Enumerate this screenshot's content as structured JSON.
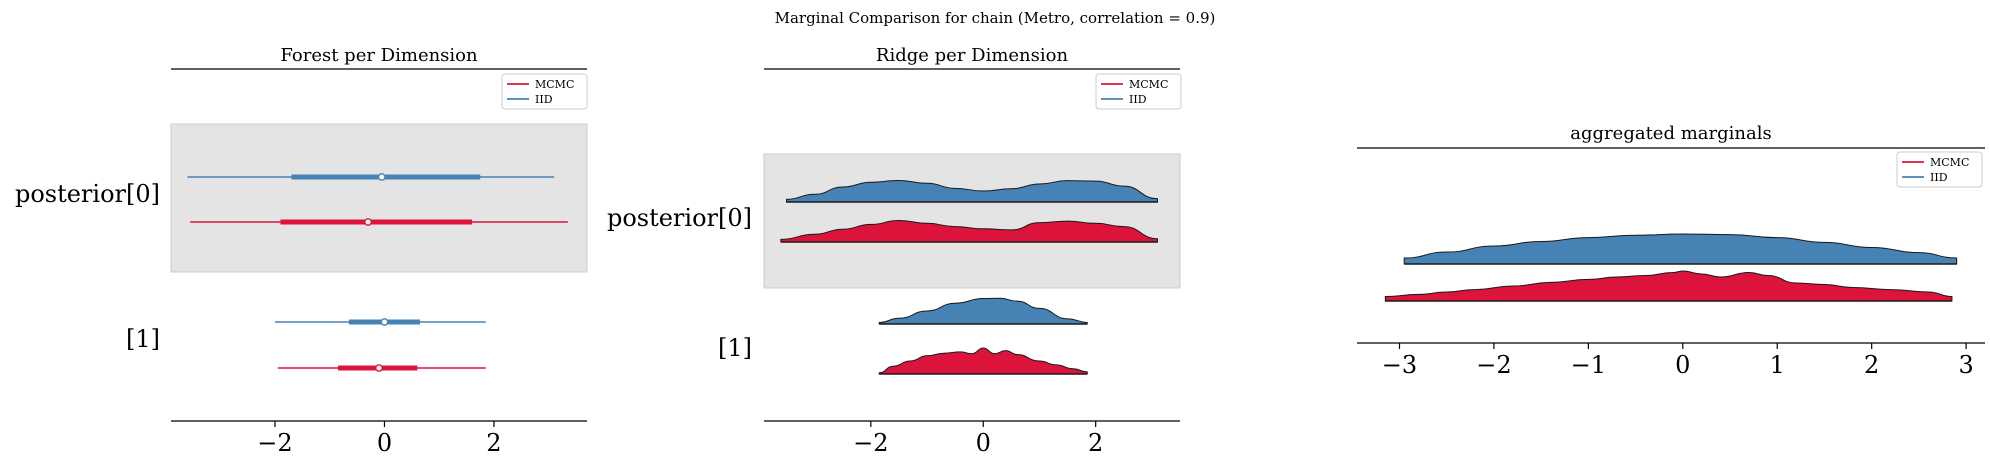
{
  "suptitle": "Marginal Comparison for chain (Metro, correlation = 0.9)",
  "colors": {
    "mcmc": "#dc143c",
    "iid": "#4682b4",
    "shade": "#e4e4e4"
  },
  "legend": {
    "mcmc": "MCMC",
    "iid": "IID"
  },
  "chart_data": [
    {
      "type": "forest",
      "title": "Forest per Dimension",
      "xlim": [
        -3.9,
        3.7
      ],
      "xticks": [
        -2,
        0,
        2
      ],
      "xtick_labels": [
        "−2",
        "0",
        "2"
      ],
      "legend_position": "top-right",
      "rows": [
        {
          "label": "posterior[0]",
          "shaded": true,
          "series": [
            {
              "name": "IID",
              "min": -3.6,
              "q25": -1.7,
              "median": -0.05,
              "q75": 1.75,
              "max": 3.1
            },
            {
              "name": "MCMC",
              "min": -3.55,
              "q25": -1.9,
              "median": -0.3,
              "q75": 1.6,
              "max": 3.35
            }
          ]
        },
        {
          "label": "[1]",
          "shaded": false,
          "series": [
            {
              "name": "IID",
              "min": -2.0,
              "q25": -0.65,
              "median": 0.0,
              "q75": 0.65,
              "max": 1.85
            },
            {
              "name": "MCMC",
              "min": -1.95,
              "q25": -0.85,
              "median": -0.1,
              "q75": 0.6,
              "max": 1.85
            }
          ]
        }
      ]
    },
    {
      "type": "ridge",
      "title": "Ridge per Dimension",
      "xlim": [
        -3.9,
        3.5
      ],
      "xticks": [
        -2,
        0,
        2
      ],
      "xtick_labels": [
        "−2",
        "0",
        "2"
      ],
      "legend_position": "top-right",
      "rows": [
        {
          "label": "posterior[0]",
          "shaded": true,
          "series": [
            {
              "name": "IID",
              "x": [
                -3.5,
                -3.0,
                -2.5,
                -2.0,
                -1.5,
                -1.0,
                -0.5,
                0.0,
                0.5,
                1.0,
                1.5,
                2.0,
                2.5,
                3.1
              ],
              "density": [
                0.12,
                0.35,
                0.68,
                0.9,
                0.98,
                0.85,
                0.62,
                0.5,
                0.6,
                0.82,
                0.97,
                0.95,
                0.72,
                0.15
              ]
            },
            {
              "name": "MCMC",
              "x": [
                -3.6,
                -3.0,
                -2.5,
                -2.0,
                -1.5,
                -1.0,
                -0.5,
                0.0,
                0.5,
                1.0,
                1.5,
                2.0,
                2.5,
                3.1
              ],
              "density": [
                0.12,
                0.35,
                0.58,
                0.8,
                0.98,
                0.85,
                0.7,
                0.6,
                0.55,
                0.88,
                0.95,
                0.85,
                0.7,
                0.15
              ]
            }
          ]
        },
        {
          "label": "[1]",
          "shaded": false,
          "series": [
            {
              "name": "IID",
              "x": [
                -1.85,
                -1.5,
                -1.0,
                -0.5,
                0.0,
                0.3,
                0.6,
                1.0,
                1.5,
                1.85
              ],
              "density": [
                0.06,
                0.22,
                0.5,
                0.8,
                0.98,
                0.99,
                0.88,
                0.6,
                0.2,
                0.06
              ]
            },
            {
              "name": "MCMC",
              "x": [
                -1.85,
                -1.6,
                -1.3,
                -1.0,
                -0.7,
                -0.4,
                -0.2,
                0.0,
                0.2,
                0.4,
                0.6,
                1.0,
                1.3,
                1.6,
                1.85
              ],
              "density": [
                0.05,
                0.3,
                0.5,
                0.7,
                0.8,
                0.85,
                0.78,
                1.0,
                0.78,
                0.9,
                0.75,
                0.5,
                0.35,
                0.2,
                0.08
              ]
            }
          ]
        }
      ]
    },
    {
      "type": "ridge",
      "title": "aggregated marginals",
      "xlim": [
        -3.45,
        3.2
      ],
      "xticks": [
        -3,
        -2,
        -1,
        0,
        1,
        2,
        3
      ],
      "xtick_labels": [
        "−3",
        "−2",
        "−1",
        "0",
        "1",
        "2",
        "3"
      ],
      "legend_position": "top-right",
      "rows": [
        {
          "label": "",
          "shaded": false,
          "series": [
            {
              "name": "IID",
              "x": [
                -2.95,
                -2.5,
                -2.0,
                -1.5,
                -1.0,
                -0.5,
                0.0,
                0.5,
                1.0,
                1.5,
                2.0,
                2.5,
                2.9
              ],
              "density": [
                0.2,
                0.4,
                0.6,
                0.75,
                0.88,
                0.96,
                1.0,
                0.98,
                0.88,
                0.72,
                0.55,
                0.38,
                0.2
              ]
            },
            {
              "name": "MCMC",
              "x": [
                -3.15,
                -2.8,
                -2.5,
                -2.2,
                -1.8,
                -1.4,
                -1.0,
                -0.7,
                -0.4,
                -0.1,
                0.0,
                0.2,
                0.4,
                0.7,
                0.9,
                1.2,
                1.5,
                1.8,
                2.2,
                2.6,
                2.85
              ],
              "density": [
                0.15,
                0.22,
                0.3,
                0.38,
                0.5,
                0.62,
                0.72,
                0.8,
                0.85,
                0.95,
                1.0,
                0.9,
                0.8,
                0.95,
                0.85,
                0.6,
                0.55,
                0.45,
                0.38,
                0.3,
                0.15
              ]
            }
          ]
        }
      ]
    }
  ]
}
